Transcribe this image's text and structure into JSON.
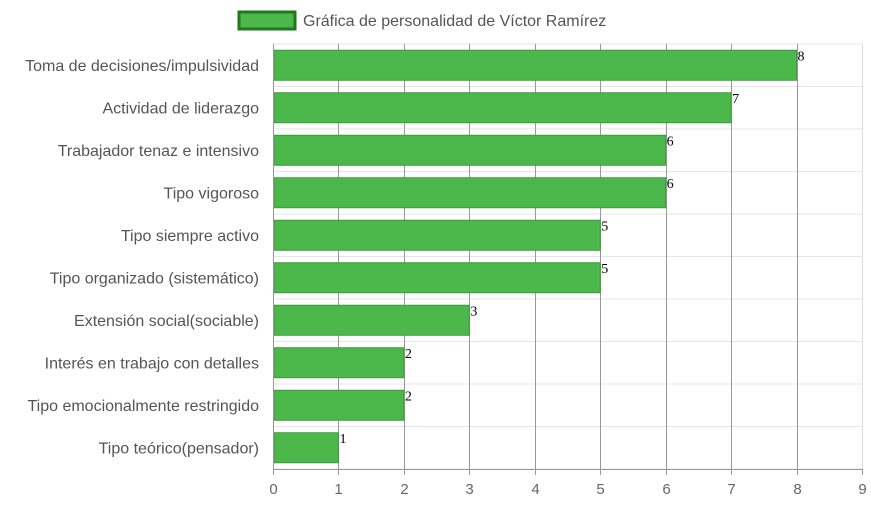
{
  "chart_data": {
    "type": "bar",
    "orientation": "horizontal",
    "categories": [
      "Toma de decisiones/impulsividad",
      "Actividad de liderazgo",
      "Trabajador tenaz e intensivo",
      "Tipo vigoroso",
      "Tipo siempre activo",
      "Tipo organizado (sistemático)",
      "Extensión social(sociable)",
      "Interés en trabajo con detalles",
      "Tipo emocionalmente restringido",
      "Tipo teórico(pensador)"
    ],
    "series": [
      {
        "name": "Gráfica de personalidad de Víctor Ramírez",
        "values": [
          8,
          7,
          6,
          6,
          5,
          5,
          3,
          2,
          2,
          1
        ],
        "color": "#4cb84c",
        "border_color": "#1f7a1f"
      }
    ],
    "xlim": [
      0,
      9
    ],
    "x_ticks": [
      "0",
      "1",
      "2",
      "3",
      "4",
      "5",
      "6",
      "7",
      "8",
      "9"
    ],
    "grid": true,
    "legend_position": "top-center",
    "data_labels": true
  }
}
